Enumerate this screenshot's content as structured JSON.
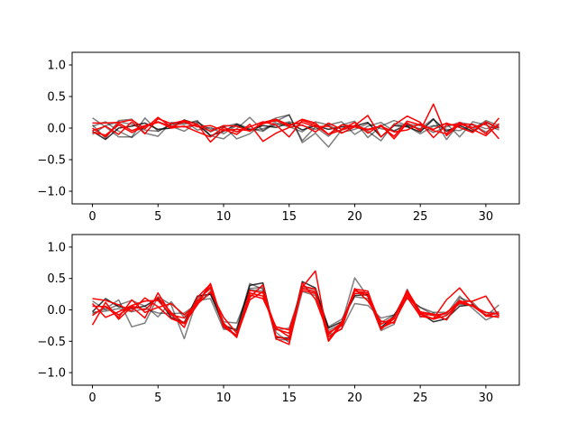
{
  "chart_data": [
    {
      "type": "line",
      "title": "",
      "xlabel": "",
      "ylabel": "",
      "xlim": [
        -1.55,
        32.55
      ],
      "ylim": [
        -1.2,
        1.2
      ],
      "xticks": [
        0,
        5,
        10,
        15,
        20,
        25,
        30
      ],
      "yticks": [
        -1.0,
        -0.5,
        0.0,
        0.5,
        1.0
      ],
      "grid": false,
      "series": [
        {
          "color": "#000000",
          "opacity": 0.5,
          "values": [
            0.16,
            0.02,
            -0.14,
            -0.14,
            0.16,
            -0.05,
            0.06,
            0.06,
            0.12,
            -0.12,
            -0.17,
            -0.01,
            0.17,
            -0.04,
            0.11,
            0.21,
            -0.2,
            0.02,
            -0.13,
            0.05,
            0.11,
            -0.15,
            0.03,
            0.12,
            0.04,
            -0.01,
            0.15,
            -0.18,
            0.08,
            -0.02,
            0.12,
            0.04
          ]
        },
        {
          "color": "#000000",
          "opacity": 0.5,
          "values": [
            0.05,
            -0.16,
            0.12,
            0.14,
            -0.08,
            -0.13,
            0.09,
            0.08,
            0.1,
            -0.06,
            0.03,
            -0.17,
            -0.09,
            0.07,
            0.16,
            0.21,
            -0.23,
            -0.08,
            -0.3,
            -0.03,
            0.02,
            -0.05,
            -0.2,
            0.07,
            0.03,
            -0.09,
            0.03,
            0.07,
            -0.14,
            0.1,
            0.05,
            -0.03
          ]
        },
        {
          "color": "#000000",
          "opacity": 0.5,
          "values": [
            -0.1,
            0.04,
            0.1,
            0.06,
            -0.03,
            -0.05,
            0.06,
            0.11,
            -0.03,
            0.01,
            -0.09,
            0.04,
            -0.04,
            -0.01,
            0.05,
            0.1,
            0.04,
            -0.02,
            0.05,
            0.1,
            -0.1,
            0.03,
            0.09,
            -0.05,
            0.06,
            0.04,
            -0.07,
            0.02,
            0.09,
            0.05,
            -0.06,
            0.02
          ]
        },
        {
          "color": "#000000",
          "opacity": 0.5,
          "values": [
            0.03,
            0.1,
            -0.05,
            -0.15,
            0.02,
            0.1,
            0.03,
            -0.05,
            0.09,
            -0.02,
            0.02,
            0.07,
            -0.01,
            -0.05,
            0.08,
            0.02,
            -0.06,
            0.1,
            0.05,
            -0.07,
            -0.02,
            0.07,
            -0.01,
            -0.04,
            0.05,
            -0.02,
            0.04,
            -0.02,
            -0.04,
            0.06,
            -0.01,
            0.03
          ]
        },
        {
          "color": "#000000",
          "opacity": 0.8,
          "values": [
            -0.05,
            -0.18,
            0.0,
            0.03,
            0.08,
            -0.02,
            0.0,
            0.13,
            0.06,
            -0.12,
            -0.05,
            0.06,
            -0.03,
            0.04,
            0.01,
            0.08,
            -0.03,
            0.04,
            -0.02,
            0.02,
            0.03,
            0.09,
            -0.14,
            0.04,
            0.02,
            -0.06,
            0.14,
            -0.05,
            0.04,
            -0.05,
            0.09,
            0.0
          ]
        },
        {
          "color": "#ff0000",
          "opacity": 1.0,
          "values": [
            0.08,
            0.08,
            0.09,
            0.13,
            -0.01,
            0.17,
            0.02,
            0.1,
            0.02,
            0.04,
            -0.04,
            -0.02,
            -0.04,
            0.07,
            0.12,
            0.03,
            0.14,
            0.08,
            -0.1,
            -0.03,
            0.04,
            0.2,
            -0.14,
            0.05,
            0.19,
            0.09,
            -0.15,
            0.05,
            0.06,
            0.01,
            0.07,
            -0.17
          ]
        },
        {
          "color": "#ff0000",
          "opacity": 1.0,
          "values": [
            -0.04,
            0.03,
            -0.1,
            0.1,
            -0.09,
            0.15,
            0.07,
            0.12,
            0.06,
            -0.22,
            -0.02,
            -0.1,
            0.06,
            -0.21,
            -0.08,
            0.01,
            0.05,
            -0.06,
            0.08,
            -0.02,
            0.09,
            -0.08,
            0.05,
            -0.17,
            0.08,
            -0.04,
            0.38,
            -0.12,
            0.06,
            0.06,
            -0.09,
            0.16
          ]
        },
        {
          "color": "#ff0000",
          "opacity": 1.0,
          "values": [
            0.0,
            -0.14,
            0.08,
            -0.04,
            0.04,
            0.1,
            0.0,
            0.03,
            -0.06,
            -0.14,
            0.01,
            -0.06,
            0.02,
            0.1,
            0.05,
            -0.14,
            0.12,
            0.05,
            -0.1,
            0.05,
            0.03,
            -0.02,
            0.03,
            -0.13,
            0.11,
            0.05,
            -0.02,
            0.08,
            0.01,
            -0.07,
            0.1,
            0.0
          ]
        },
        {
          "color": "#ff0000",
          "opacity": 1.0,
          "values": [
            -0.07,
            -0.11,
            0.05,
            -0.07,
            0.03,
            0.09,
            0.03,
            0.02,
            0.05,
            -0.05,
            0.04,
            0.03,
            -0.05,
            0.09,
            0.14,
            0.05,
            0.09,
            0.02,
            0.03,
            -0.08,
            0.02,
            -0.03,
            0.03,
            -0.06,
            -0.03,
            0.07,
            -0.04,
            -0.09,
            0.09,
            -0.02,
            -0.12,
            0.07
          ]
        }
      ]
    },
    {
      "type": "line",
      "title": "",
      "xlabel": "",
      "ylabel": "",
      "xlim": [
        -1.55,
        32.55
      ],
      "ylim": [
        -1.2,
        1.2
      ],
      "xticks": [
        0,
        5,
        10,
        15,
        20,
        25,
        30
      ],
      "yticks": [
        -1.0,
        -0.5,
        0.0,
        0.5,
        1.0
      ],
      "grid": false,
      "series": [
        {
          "color": "#000000",
          "opacity": 0.5,
          "values": [
            -0.06,
            0.02,
            0.16,
            -0.27,
            -0.21,
            0.21,
            0.08,
            -0.46,
            0.18,
            0.33,
            -0.28,
            -0.4,
            0.34,
            0.36,
            -0.47,
            -0.48,
            0.37,
            0.32,
            -0.33,
            -0.22,
            0.51,
            0.21,
            -0.33,
            -0.23,
            0.33,
            -0.12,
            -0.05,
            -0.16,
            0.19,
            0.12,
            -0.1,
            0.08
          ]
        },
        {
          "color": "#000000",
          "opacity": 0.5,
          "values": [
            0.14,
            0.0,
            0.08,
            0.15,
            0.06,
            -0.11,
            0.13,
            -0.12,
            0.15,
            0.18,
            -0.31,
            -0.3,
            0.42,
            0.33,
            -0.36,
            -0.52,
            0.29,
            0.23,
            -0.4,
            -0.31,
            0.1,
            0.07,
            -0.13,
            -0.08,
            0.18,
            0.04,
            -0.08,
            -0.07,
            0.22,
            0.02,
            -0.16,
            -0.07
          ]
        },
        {
          "color": "#000000",
          "opacity": 0.5,
          "values": [
            -0.04,
            -0.02,
            0.02,
            -0.03,
            0.02,
            -0.05,
            -0.06,
            -0.05,
            0.1,
            0.26,
            -0.19,
            -0.21,
            0.32,
            0.3,
            -0.32,
            -0.29,
            0.35,
            0.28,
            -0.27,
            -0.15,
            0.21,
            0.18,
            -0.2,
            -0.08,
            0.2,
            0.04,
            -0.04,
            -0.04,
            0.09,
            0.07,
            -0.05,
            -0.03
          ]
        },
        {
          "color": "#000000",
          "opacity": 0.8,
          "values": [
            -0.03,
            0.18,
            0.05,
            0.02,
            0.06,
            0.18,
            -0.12,
            -0.2,
            0.22,
            0.25,
            -0.24,
            -0.33,
            0.39,
            0.43,
            -0.44,
            -0.45,
            0.45,
            0.35,
            -0.29,
            -0.19,
            0.23,
            0.24,
            -0.28,
            -0.1,
            0.29,
            -0.05,
            -0.19,
            -0.14,
            0.06,
            0.08,
            -0.09,
            -0.05
          ]
        },
        {
          "color": "#ff0000",
          "opacity": 1.0,
          "values": [
            0.18,
            0.15,
            0.08,
            -0.02,
            0.19,
            0.05,
            -0.14,
            -0.22,
            0.08,
            0.41,
            -0.27,
            -0.42,
            0.27,
            0.22,
            -0.31,
            -0.37,
            0.34,
            0.29,
            -0.43,
            -0.3,
            0.31,
            0.22,
            -0.31,
            -0.14,
            0.29,
            -0.07,
            -0.14,
            0.16,
            0.35,
            0.09,
            -0.1,
            -0.11
          ]
        },
        {
          "color": "#ff0000",
          "opacity": 1.0,
          "values": [
            -0.24,
            0.12,
            -0.15,
            0.05,
            -0.13,
            0.27,
            -0.07,
            -0.28,
            0.2,
            0.41,
            -0.23,
            -0.44,
            0.31,
            0.27,
            -0.29,
            -0.43,
            0.36,
            0.62,
            -0.48,
            -0.2,
            0.3,
            0.27,
            -0.31,
            -0.12,
            0.31,
            -0.03,
            -0.07,
            -0.16,
            0.13,
            0.14,
            0.22,
            -0.1
          ]
        },
        {
          "color": "#ff0000",
          "opacity": 1.0,
          "values": [
            0.1,
            -0.12,
            -0.03,
            0.07,
            0.14,
            0.15,
            -0.08,
            -0.13,
            0.09,
            0.29,
            -0.12,
            -0.37,
            0.24,
            0.18,
            -0.27,
            -0.32,
            0.31,
            0.26,
            -0.36,
            -0.25,
            0.34,
            0.14,
            -0.18,
            -0.21,
            0.24,
            -0.05,
            -0.09,
            -0.05,
            0.15,
            0.06,
            -0.08,
            -0.12
          ]
        },
        {
          "color": "#ff0000",
          "opacity": 1.0,
          "values": [
            0.06,
            0.05,
            -0.08,
            0.06,
            0.0,
            0.2,
            -0.04,
            -0.22,
            0.14,
            0.36,
            -0.21,
            -0.43,
            0.2,
            0.4,
            -0.46,
            -0.55,
            0.38,
            0.33,
            -0.5,
            -0.23,
            0.33,
            0.3,
            -0.29,
            -0.19,
            0.2,
            -0.1,
            -0.14,
            -0.04,
            0.12,
            0.06,
            -0.04,
            -0.07
          ]
        },
        {
          "color": "#ff0000",
          "opacity": 1.0,
          "values": [
            -0.09,
            0.06,
            -0.12,
            0.16,
            -0.04,
            0.04,
            0.1,
            -0.08,
            0.1,
            0.42,
            -0.26,
            -0.41,
            0.16,
            0.29,
            -0.42,
            -0.48,
            0.43,
            0.17,
            -0.39,
            -0.2,
            0.26,
            0.27,
            -0.23,
            -0.12,
            0.28,
            -0.06,
            -0.15,
            -0.09,
            0.11,
            0.06,
            -0.09,
            -0.05
          ]
        }
      ]
    }
  ]
}
